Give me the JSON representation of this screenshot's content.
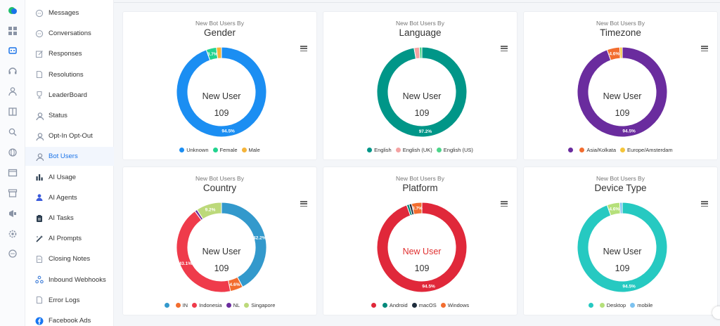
{
  "sidebar": {
    "items": [
      {
        "label": "Messages",
        "icon": "chat-bubble-icon",
        "active": false
      },
      {
        "label": "Conversations",
        "icon": "conversation-icon",
        "active": false
      },
      {
        "label": "Responses",
        "icon": "edit-icon",
        "active": false
      },
      {
        "label": "Resolutions",
        "icon": "document-icon",
        "active": false
      },
      {
        "label": "LeaderBoard",
        "icon": "trophy-icon",
        "active": false
      },
      {
        "label": "Status",
        "icon": "user-icon",
        "active": false
      },
      {
        "label": "Opt-In Opt-Out",
        "icon": "user-icon",
        "active": false
      },
      {
        "label": "Bot Users",
        "icon": "user-icon",
        "active": true
      },
      {
        "label": "AI Usage",
        "icon": "bar-chart-icon",
        "active": false
      },
      {
        "label": "AI Agents",
        "icon": "agent-icon",
        "active": false
      },
      {
        "label": "AI Tasks",
        "icon": "clipboard-icon",
        "active": false
      },
      {
        "label": "AI Prompts",
        "icon": "magic-wand-icon",
        "active": false
      },
      {
        "label": "Closing Notes",
        "icon": "notes-icon",
        "active": false
      },
      {
        "label": "Inbound Webhooks",
        "icon": "webhook-icon",
        "active": false
      },
      {
        "label": "Error Logs",
        "icon": "document-icon",
        "active": false
      },
      {
        "label": "Facebook Ads",
        "icon": "facebook-icon",
        "active": false
      }
    ]
  },
  "rail": {
    "icons": [
      "logo-icon",
      "grid-icon",
      "bot-icon",
      "headset-icon",
      "user-icon",
      "book-icon",
      "search-icon",
      "globe-icon",
      "window-icon",
      "archive-icon",
      "megaphone-icon",
      "settings-icon",
      "chat-icon"
    ]
  },
  "center": {
    "label": "New User",
    "count": "109"
  },
  "colors": {
    "accent": "#1a73e8"
  },
  "charts": [
    {
      "subtitle": "New Bot Users By",
      "title": "Gender",
      "slices": [
        {
          "name": "Unknown",
          "value": 94.5,
          "color": "#1b8ef2",
          "label": "94.5%"
        },
        {
          "name": "Female",
          "value": 3.7,
          "color": "#22d38f",
          "label": "3.7%"
        },
        {
          "name": "Male",
          "value": 1.8,
          "color": "#f5b43a",
          "label": ""
        }
      ]
    },
    {
      "subtitle": "New Bot Users By",
      "title": "Language",
      "slices": [
        {
          "name": "English",
          "value": 97.2,
          "color": "#009688",
          "label": "97.2%"
        },
        {
          "name": "English (UK)",
          "value": 1.9,
          "color": "#f5a3a3",
          "label": ""
        },
        {
          "name": "English (US)",
          "value": 0.9,
          "color": "#4cd58a",
          "label": ""
        }
      ]
    },
    {
      "subtitle": "New Bot Users By",
      "title": "Timezone",
      "slices": [
        {
          "name": "",
          "value": 94.5,
          "color": "#6a2c9e",
          "label": "94.5%"
        },
        {
          "name": "Asia/Kolkata",
          "value": 4.6,
          "color": "#f26d2f",
          "label": "4.6%"
        },
        {
          "name": "Europe/Amsterdam",
          "value": 0.9,
          "color": "#f5c53a",
          "label": ""
        }
      ]
    },
    {
      "subtitle": "New Bot Users By",
      "title": "Country",
      "slices": [
        {
          "name": "",
          "value": 42.2,
          "color": "#3399cc",
          "label": "42.2%"
        },
        {
          "name": "IN",
          "value": 4.6,
          "color": "#f26d2f",
          "label": "4.6%"
        },
        {
          "name": "Indonesia",
          "value": 43.1,
          "color": "#ef3b4b",
          "label": "43.1%"
        },
        {
          "name": "NL",
          "value": 0.9,
          "color": "#6a2c9e",
          "label": ""
        },
        {
          "name": "Singapore",
          "value": 9.2,
          "color": "#bcd97a",
          "label": "9.2%"
        }
      ]
    },
    {
      "subtitle": "New Bot Users By",
      "title": "Platform",
      "center_red": true,
      "slices": [
        {
          "name": "",
          "value": 94.5,
          "color": "#e0283a",
          "label": "94.5%"
        },
        {
          "name": "Android",
          "value": 0.9,
          "color": "#00897b",
          "label": ""
        },
        {
          "name": "macOS",
          "value": 0.9,
          "color": "#1f2d3d",
          "label": ""
        },
        {
          "name": "Windows",
          "value": 3.7,
          "color": "#f26d2f",
          "label": "3.7%"
        }
      ]
    },
    {
      "subtitle": "New Bot Users By",
      "title": "Device Type",
      "slices": [
        {
          "name": "",
          "value": 94.5,
          "color": "#26c9c1",
          "label": "94.5%"
        },
        {
          "name": "Desktop",
          "value": 4.6,
          "color": "#b5e07a",
          "label": "4.6%"
        },
        {
          "name": "mobile",
          "value": 0.9,
          "color": "#7cc2f0",
          "label": ""
        }
      ]
    }
  ]
}
